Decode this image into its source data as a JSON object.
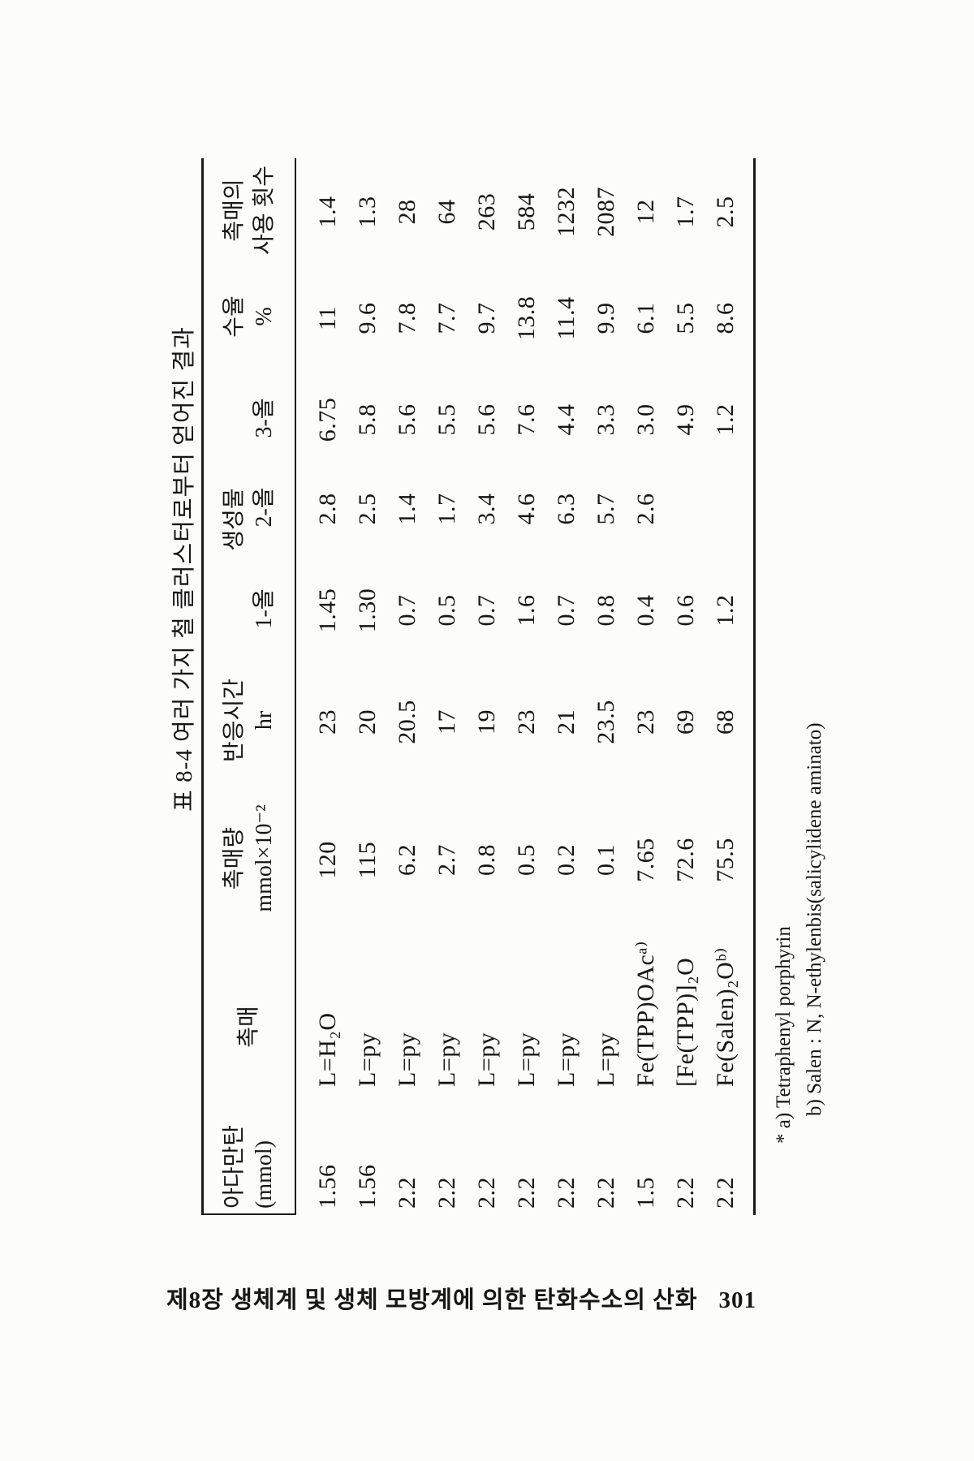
{
  "table": {
    "title": "표 8-4  여러 가지 철 클러스터로부터 얻어진 결과",
    "headers": {
      "adamantane": {
        "line1": "아다만탄",
        "line2": "(mmol)"
      },
      "catalyst": {
        "line1": "촉매"
      },
      "amount": {
        "line1": "촉매량",
        "line2": "mmol×10⁻²"
      },
      "time": {
        "line1": "반응시간",
        "line2": "hr"
      },
      "product": {
        "line1": "생성물",
        "sub": [
          "1-올",
          "2-올",
          "3-올"
        ]
      },
      "yield": {
        "line1": "수율",
        "line2": "%"
      },
      "turnover": {
        "line1": "촉매의",
        "line2": "사용 횟수"
      }
    },
    "rows": [
      [
        "1.56",
        "L=H₂O",
        "120",
        "23",
        "1.45",
        "2.8",
        "6.75",
        "11",
        "1.4"
      ],
      [
        "1.56",
        "L=py",
        "115",
        "20",
        "1.30",
        "2.5",
        "5.8",
        "9.6",
        "1.3"
      ],
      [
        "2.2",
        "L=py",
        "6.2",
        "20.5",
        "0.7",
        "1.4",
        "5.6",
        "7.8",
        "28"
      ],
      [
        "2.2",
        "L=py",
        "2.7",
        "17",
        "0.5",
        "1.7",
        "5.5",
        "7.7",
        "64"
      ],
      [
        "2.2",
        "L=py",
        "0.8",
        "19",
        "0.7",
        "3.4",
        "5.6",
        "9.7",
        "263"
      ],
      [
        "2.2",
        "L=py",
        "0.5",
        "23",
        "1.6",
        "4.6",
        "7.6",
        "13.8",
        "584"
      ],
      [
        "2.2",
        "L=py",
        "0.2",
        "21",
        "0.7",
        "6.3",
        "4.4",
        "11.4",
        "1232"
      ],
      [
        "2.2",
        "L=py",
        "0.1",
        "23.5",
        "0.8",
        "5.7",
        "3.3",
        "9.9",
        "2087"
      ],
      [
        "1.5",
        "Fe(TPP)OAcᵃ⁾",
        "7.65",
        "23",
        "0.4",
        "2.6",
        "3.0",
        "6.1",
        "12"
      ],
      [
        "2.2",
        "[Fe(TPP)]₂O",
        "72.6",
        "69",
        "0.6",
        "",
        "4.9",
        "5.5",
        "1.7"
      ],
      [
        "2.2",
        "Fe(Salen)₂Oᵇ⁾",
        "75.5",
        "68",
        "1.2",
        "",
        "1.2",
        "8.6",
        "2.5"
      ]
    ]
  },
  "footnotes": {
    "line1": "* a) Tetraphenyl porphyrin",
    "line2": "b) Salen : N, N-ethylenbis(salicylidene aminato)"
  },
  "page": {
    "footer": {
      "chapter_title": "제8장 생체계 및 생체 모방계에 의한 탄화수소의 산화",
      "page_number": "301"
    }
  }
}
